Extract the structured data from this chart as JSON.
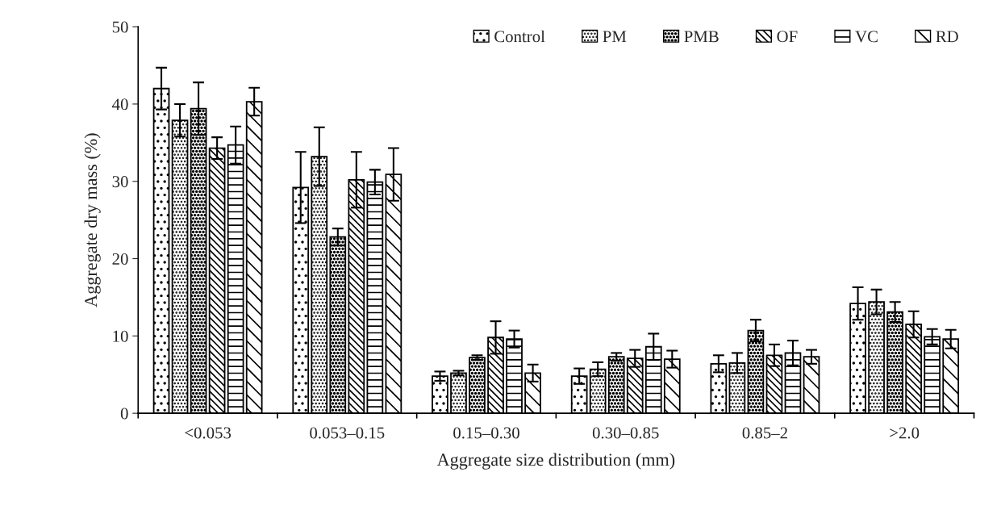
{
  "chart_data": {
    "type": "bar",
    "xlabel": "Aggregate size distribution (mm)",
    "ylabel": "Aggregate dry mass (%)",
    "categories": [
      "<0.053",
      "0.053–0.15",
      "0.15–0.30",
      "0.30–0.85",
      "0.85–2",
      ">2.0"
    ],
    "series": [
      {
        "name": "Control",
        "color": "#000000",
        "values": [
          42.0,
          29.2,
          4.8,
          4.8,
          6.4,
          14.2
        ],
        "errors": [
          2.7,
          4.6,
          0.6,
          1.0,
          1.1,
          2.1
        ]
      },
      {
        "name": "PM",
        "color": "#000000",
        "values": [
          37.9,
          33.2,
          5.2,
          5.7,
          6.5,
          14.4
        ],
        "errors": [
          2.1,
          3.8,
          0.3,
          0.9,
          1.3,
          1.6
        ]
      },
      {
        "name": "PMB",
        "color": "#000000",
        "values": [
          39.4,
          22.8,
          7.2,
          7.3,
          10.7,
          13.1
        ],
        "errors": [
          3.4,
          1.1,
          0.3,
          0.5,
          1.4,
          1.3
        ]
      },
      {
        "name": "OF",
        "color": "#000000",
        "values": [
          34.3,
          30.2,
          9.8,
          7.1,
          7.5,
          11.5
        ],
        "errors": [
          1.4,
          3.6,
          2.1,
          1.1,
          1.4,
          1.7
        ]
      },
      {
        "name": "VC",
        "color": "#000000",
        "values": [
          34.7,
          29.9,
          9.6,
          8.6,
          7.8,
          9.9
        ],
        "errors": [
          2.4,
          1.6,
          1.1,
          1.7,
          1.6,
          1.0
        ]
      },
      {
        "name": "RD",
        "color": "#000000",
        "values": [
          40.3,
          30.9,
          5.2,
          7.0,
          7.3,
          9.6
        ],
        "errors": [
          1.8,
          3.4,
          1.1,
          1.1,
          0.9,
          1.2
        ]
      }
    ],
    "ylim": [
      0,
      50
    ],
    "yticks": [
      0,
      10,
      20,
      30,
      40,
      50
    ],
    "grid": false,
    "legend": "top right"
  }
}
